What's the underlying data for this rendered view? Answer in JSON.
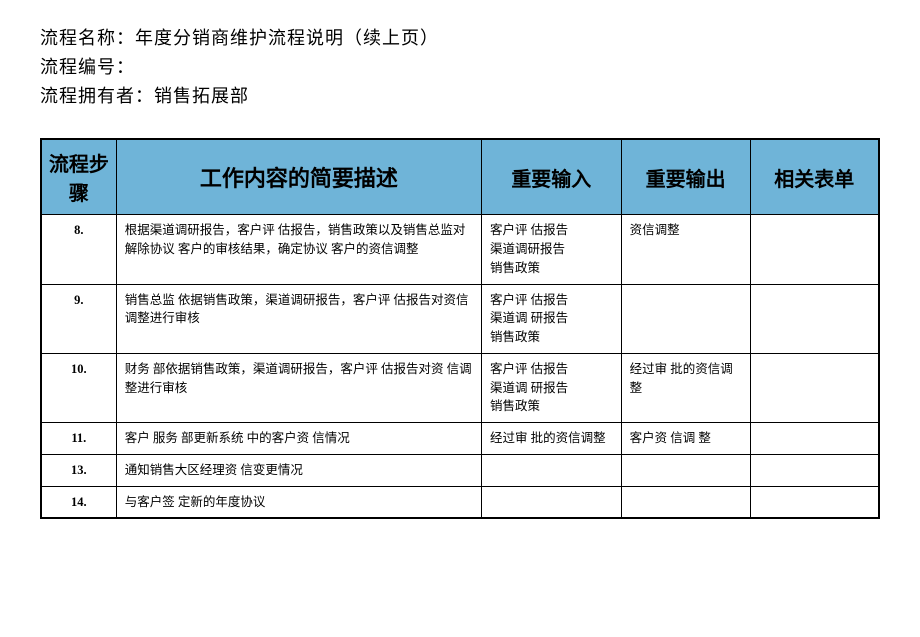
{
  "header": {
    "name_label": "流程名称：",
    "name_value": "年度分销商维护流程说明（续上页）",
    "number_label": "流程编号：",
    "number_value": "",
    "owner_label": "流程拥有者：",
    "owner_value": "销售拓展部"
  },
  "table": {
    "header_bg": "#6fb4d8",
    "columns": {
      "step": "流程步骤",
      "desc": "工作内容的简要描述",
      "input": "重要输入",
      "output": "重要输出",
      "form": "相关表单"
    },
    "rows": [
      {
        "step": "8.",
        "desc": "根据渠道调研报告，客户评 估报告，销售政策以及销售总监对解除协议 客户的审核结果，确定协议 客户的资信调整",
        "input": [
          "客户评 估报告",
          "渠道调研报告",
          "销售政策"
        ],
        "output": "资信调整",
        "form": ""
      },
      {
        "step": "9.",
        "desc": "销售总监 依据销售政策，渠道调研报告，客户评 估报告对资信调整进行审核",
        "input": [
          "客户评 估报告",
          "渠道调 研报告",
          "销售政策"
        ],
        "output": "",
        "form": ""
      },
      {
        "step": "10.",
        "desc": "财务 部依据销售政策，渠道调研报告，客户评 估报告对资 信调整进行审核",
        "input": [
          "客户评 估报告",
          "渠道调 研报告",
          "销售政策"
        ],
        "output": "经过审 批的资信调整",
        "form": ""
      },
      {
        "step": "11.",
        "desc": "客户 服务 部更新系统 中的客户资 信情况",
        "input": [
          "经过审 批的资信调整"
        ],
        "output": "客户资 信调 整",
        "form": ""
      },
      {
        "step": "13.",
        "desc": "通知销售大区经理资 信变更情况",
        "input": [],
        "output": "",
        "form": ""
      },
      {
        "step": "14.",
        "desc": "与客户签 定新的年度协议",
        "input": [],
        "output": "",
        "form": ""
      }
    ]
  }
}
